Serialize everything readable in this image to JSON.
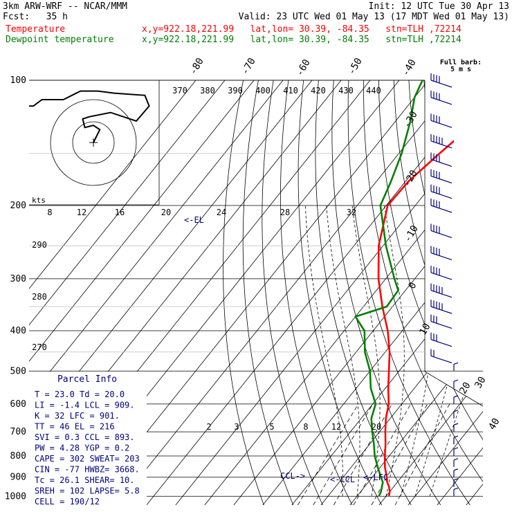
{
  "header": {
    "model": "3km ARW-WRF -- NCAR/MMM",
    "init": "Init: 12 UTC Tue 30 Apr 13",
    "fcst": "Fcst:   35 h",
    "valid": "Valid: 23 UTC Wed 01 May 13 (17 MDT Wed 01 May 13)",
    "temp_label": "Temperature",
    "dew_label": "Dewpoint temperature",
    "temp_loc": "x,y=922.18,221.99   lat,lon= 30.39, -84.35   stn=TLH ,72214",
    "dew_loc": "x,y=922.18,221.99   lat,lon= 30.39, -84.35   stn=TLH ,72214"
  },
  "colors": {
    "temperature": "#ff0000",
    "dewpoint": "#008000",
    "panel": "#000080",
    "wind": "#000080"
  },
  "chart_data": {
    "type": "line",
    "title": "",
    "xlabel": "",
    "ylabel": "",
    "pressure_levels": [
      "100",
      "200",
      "300",
      "400",
      "500",
      "600",
      "700",
      "800",
      "900",
      "1000"
    ],
    "isotherm_labels": [
      "-80",
      "-70",
      "-60",
      "-50",
      "-40",
      "-30",
      "-20",
      "-10",
      "0",
      "10",
      "20",
      "30",
      "40"
    ],
    "theta_labels": [
      "370",
      "380",
      "390",
      "400",
      "410",
      "420",
      "430",
      "440"
    ],
    "theta_left_labels": [
      "290",
      "280",
      "270"
    ],
    "mixing_ratio_labels": [
      "2",
      "3",
      "5",
      "8",
      "12",
      "20"
    ],
    "hodo_speed_labels": [
      "8",
      "12",
      "16",
      "20",
      "24",
      "28",
      "32"
    ],
    "hodo_units": "kts",
    "barb_legend": [
      "Full barb:",
      "5 m s"
    ],
    "marker_labels": {
      "el": "<-EL",
      "ccl": "CCL->",
      "lcl": "<-LCL",
      "lfc": "<-LFC"
    },
    "series": [
      {
        "name": "Temperature",
        "values": [
          [
            1000,
            21.0
          ],
          [
            975,
            20.0
          ],
          [
            950,
            18.5
          ],
          [
            925,
            16.5
          ],
          [
            900,
            15.0
          ],
          [
            850,
            11.5
          ],
          [
            800,
            8.5
          ],
          [
            750,
            5.5
          ],
          [
            700,
            2.0
          ],
          [
            650,
            -1.5
          ],
          [
            600,
            -4.5
          ],
          [
            550,
            -9.0
          ],
          [
            500,
            -13.5
          ],
          [
            450,
            -18.5
          ],
          [
            400,
            -25.0
          ],
          [
            350,
            -33.5
          ],
          [
            300,
            -42.5
          ],
          [
            250,
            -51.5
          ],
          [
            200,
            -59.5
          ],
          [
            175,
            -59.0
          ],
          [
            150,
            -56.0
          ],
          [
            125,
            -52.0
          ],
          [
            100,
            -50.5
          ]
        ]
      },
      {
        "name": "Dewpoint temperature",
        "values": [
          [
            1000,
            17.5
          ],
          [
            975,
            17.0
          ],
          [
            950,
            16.0
          ],
          [
            925,
            15.0
          ],
          [
            900,
            13.0
          ],
          [
            850,
            9.0
          ],
          [
            800,
            5.0
          ],
          [
            750,
            1.5
          ],
          [
            700,
            -2.5
          ],
          [
            650,
            -6.5
          ],
          [
            600,
            -9.0
          ],
          [
            550,
            -15.0
          ],
          [
            500,
            -20.0
          ],
          [
            450,
            -27.0
          ],
          [
            400,
            -33.0
          ],
          [
            370,
            -40.0
          ],
          [
            350,
            -32.0
          ],
          [
            320,
            -32.5
          ],
          [
            300,
            -37.0
          ],
          [
            250,
            -49.0
          ],
          [
            200,
            -62.0
          ],
          [
            175,
            -65.0
          ],
          [
            150,
            -69.0
          ],
          [
            125,
            -75.0
          ],
          [
            110,
            -80.0
          ],
          [
            100,
            -82.0
          ]
        ]
      }
    ],
    "hodograph": [
      [
        0,
        0
      ],
      [
        3,
        6
      ],
      [
        0,
        8
      ],
      [
        -4,
        7
      ],
      [
        -5,
        11
      ],
      [
        -2,
        12
      ],
      [
        8,
        14
      ],
      [
        20,
        10
      ],
      [
        26,
        17
      ],
      [
        24,
        22
      ],
      [
        10,
        23
      ],
      [
        2,
        24
      ],
      [
        -6,
        24
      ],
      [
        -8,
        23
      ],
      [
        -14,
        20
      ],
      [
        -22,
        20
      ],
      [
        -24,
        20
      ],
      [
        -28,
        17
      ],
      [
        -30,
        17
      ]
    ],
    "wind_barbs_ms": [
      [
        100,
        22
      ],
      [
        110,
        22
      ],
      [
        125,
        22
      ],
      [
        140,
        25
      ],
      [
        155,
        22
      ],
      [
        170,
        22
      ],
      [
        185,
        20
      ],
      [
        200,
        20
      ],
      [
        230,
        20
      ],
      [
        260,
        20
      ],
      [
        290,
        22
      ],
      [
        320,
        25
      ],
      [
        350,
        25
      ],
      [
        380,
        15
      ],
      [
        420,
        15
      ],
      [
        460,
        10
      ],
      [
        500,
        5
      ],
      [
        550,
        5
      ],
      [
        600,
        5
      ],
      [
        650,
        3
      ],
      [
        700,
        3
      ],
      [
        750,
        3
      ],
      [
        800,
        5
      ],
      [
        850,
        5
      ],
      [
        900,
        5
      ],
      [
        950,
        5
      ],
      [
        1000,
        3
      ]
    ]
  },
  "parcel_info": {
    "title": "Parcel Info",
    "rows": [
      "T  =   23.0 Td =  20.0",
      "LI =   -1.4 LCL =  909.",
      "K  =     32 LFC =  901.",
      "TT =     46 EL  =  216",
      "SVI =   0.3 CCL =  893.",
      "PW =   4.28 YGP =   0.2",
      "CAPE =   302 SWEAT=  203",
      "CIN =   -77 HWBZ= 3668.",
      "Tc =   26.1 SHEAR=  10.",
      "SREH =  102 LAPSE=  5.8",
      "CELL = 190/12"
    ]
  }
}
